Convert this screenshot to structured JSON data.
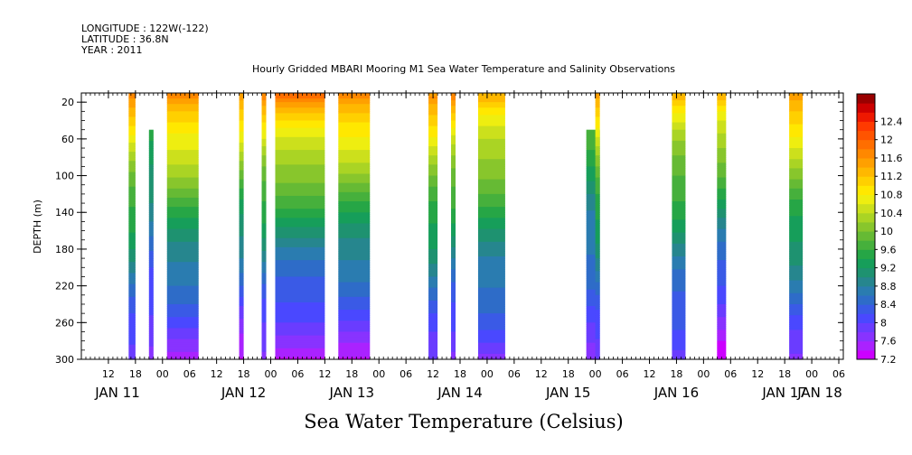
{
  "header": {
    "longitude": "LONGITUDE : 122W(-122)",
    "latitude": "LATITUDE : 36.8N",
    "year": "YEAR : 2011"
  },
  "chart_data": {
    "type": "heatmap",
    "title": "Hourly Gridded MBARI Mooring M1 Sea Water Temperature and Salinity Observations",
    "ylabel": "DEPTH (m)",
    "variable_label": "Sea Water Temperature (Celsius)",
    "y_axis": {
      "range": [
        10,
        300
      ],
      "inverted": true,
      "ticks": [
        20,
        60,
        100,
        140,
        180,
        220,
        260,
        300
      ]
    },
    "x_axis": {
      "range_hours": [
        0,
        169
      ],
      "hour_ticks": [
        "12",
        "18",
        "00",
        "06",
        "12",
        "18",
        "00",
        "06",
        "12",
        "18",
        "00",
        "06",
        "12",
        "18",
        "00",
        "06",
        "12",
        "18",
        "00",
        "06",
        "12",
        "18",
        "00",
        "06",
        "12",
        "18",
        "00",
        "06"
      ],
      "day_labels": [
        "JAN 11",
        "JAN 12",
        "JAN 13",
        "JAN 14",
        "JAN 15",
        "JAN 16",
        "JAN 17",
        "JAN 18"
      ]
    },
    "colorbar": {
      "min": 7.2,
      "max": 12.4,
      "step": 0.2,
      "tick_labels": [
        "7.2",
        "7.6",
        "8",
        "8.4",
        "8.8",
        "9.2",
        "9.6",
        "10",
        "10.4",
        "10.8",
        "11.2",
        "11.6",
        "12",
        "12.4"
      ],
      "colors": [
        "#cc00ff",
        "#aa22ff",
        "#8833ff",
        "#6a3cff",
        "#4a48ff",
        "#3a5ae6",
        "#2e6cc8",
        "#2a7cb0",
        "#26868e",
        "#1e9270",
        "#169e5a",
        "#26a646",
        "#46b03c",
        "#66ba34",
        "#88c62c",
        "#aad424",
        "#cce01c",
        "#eeee10",
        "#ffe800",
        "#ffd000",
        "#ffb800",
        "#ffa000",
        "#ff8800",
        "#ff6e00",
        "#ff5400",
        "#ff3a00",
        "#ee1800",
        "#cc0000"
      ],
      "top_color": "#990000"
    },
    "segments": [
      {
        "start": 10.5,
        "end": 12.0,
        "top_depth": 20,
        "temp_surface": 11.6,
        "temp_bottom": 7.8
      },
      {
        "start": 15.0,
        "end": 16.0,
        "top_depth": 60,
        "temp_surface": 10.2,
        "temp_bottom": 7.6
      },
      {
        "start": 19.0,
        "end": 26.0,
        "top_depth": 20,
        "temp_surface": 11.8,
        "temp_bottom": 7.6
      },
      {
        "start": 35.0,
        "end": 36.0,
        "top_depth": 20,
        "temp_surface": 11.6,
        "temp_bottom": 7.4
      },
      {
        "start": 40.0,
        "end": 41.0,
        "top_depth": 20,
        "temp_surface": 11.6,
        "temp_bottom": 7.6
      },
      {
        "start": 43.0,
        "end": 54.0,
        "top_depth": 20,
        "temp_surface": 11.8,
        "temp_bottom": 7.4
      },
      {
        "start": 57.0,
        "end": 64.0,
        "top_depth": 20,
        "temp_surface": 11.8,
        "temp_bottom": 7.5
      },
      {
        "start": 77.0,
        "end": 79.0,
        "top_depth": 20,
        "temp_surface": 11.6,
        "temp_bottom": 7.8
      },
      {
        "start": 82.0,
        "end": 83.0,
        "top_depth": 20,
        "temp_surface": 11.6,
        "temp_bottom": 7.6
      },
      {
        "start": 88.0,
        "end": 94.0,
        "top_depth": 20,
        "temp_surface": 11.4,
        "temp_bottom": 7.8
      },
      {
        "start": 112.0,
        "end": 115.0,
        "top_depth": 60,
        "temp_surface": 10.2,
        "temp_bottom": 7.8
      },
      {
        "start": 114.0,
        "end": 115.0,
        "top_depth": 20,
        "temp_surface": 11.4,
        "temp_bottom": 7.8
      },
      {
        "start": 131.0,
        "end": 134.0,
        "top_depth": 20,
        "temp_surface": 11.2,
        "temp_bottom": 7.8
      },
      {
        "start": 141.0,
        "end": 143.0,
        "top_depth": 20,
        "temp_surface": 11.4,
        "temp_bottom": 7.2
      },
      {
        "start": 157.0,
        "end": 160.0,
        "top_depth": 20,
        "temp_surface": 11.6,
        "temp_bottom": 7.8
      }
    ]
  }
}
